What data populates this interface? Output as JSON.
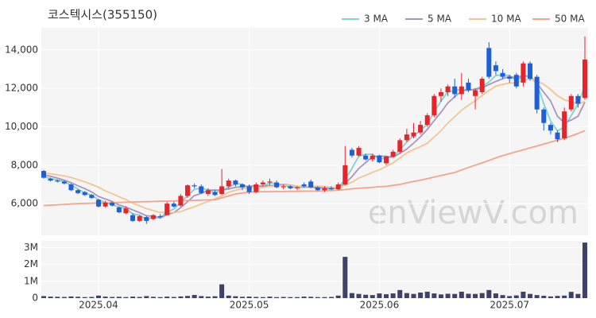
{
  "chart_data": {
    "type": "candlestick",
    "title": "코스텍시스(355150)",
    "watermark": "enViewV.com",
    "up_color": "#e8242b",
    "down_color": "#1c5fd8",
    "open": [
      7700,
      7300,
      7200,
      7150,
      7000,
      6700,
      6600,
      6450,
      6200,
      5850,
      6050,
      5800,
      5500,
      5400,
      5100,
      5300,
      5200,
      5350,
      5400,
      6000,
      5900,
      6400,
      6950,
      6900,
      6500,
      6600,
      6500,
      6900,
      7200,
      7000,
      6900,
      6600,
      7000,
      7100,
      7100,
      6850,
      6900,
      6800,
      7000,
      7150,
      6850,
      6700,
      6800,
      6750,
      7000,
      8800,
      8500,
      8500,
      8300,
      8500,
      8100,
      8450,
      8700,
      9300,
      9500,
      9700,
      10100,
      10600,
      11600,
      11800,
      12100,
      11700,
      12300,
      11600,
      11800,
      14100,
      13200,
      12800,
      12600,
      12700,
      12300,
      13300,
      12600,
      10900,
      10100,
      9700,
      9400,
      10900,
      11600,
      11500
    ],
    "high": [
      7750,
      7350,
      7250,
      7200,
      7050,
      6750,
      6650,
      6500,
      6250,
      6150,
      6100,
      5850,
      5850,
      5500,
      5400,
      5350,
      5450,
      5450,
      6100,
      6100,
      6500,
      7000,
      7050,
      7000,
      6800,
      6700,
      7800,
      7300,
      7250,
      7050,
      7000,
      7100,
      7200,
      7300,
      7200,
      7000,
      6950,
      6900,
      7100,
      7250,
      6900,
      6900,
      6900,
      7100,
      9000,
      8900,
      9000,
      8600,
      8600,
      8550,
      8500,
      8800,
      9400,
      9900,
      10200,
      10300,
      10700,
      11700,
      12000,
      12200,
      12500,
      12800,
      12500,
      12000,
      12600,
      14400,
      13400,
      13000,
      12700,
      12800,
      13400,
      13400,
      12700,
      11000,
      10200,
      9800,
      11000,
      11700,
      11700,
      14700
    ],
    "low": [
      7300,
      7150,
      7100,
      7000,
      6650,
      6500,
      6400,
      6250,
      5800,
      5800,
      5850,
      5500,
      5450,
      5050,
      5050,
      4950,
      5150,
      5250,
      5400,
      5800,
      5850,
      6300,
      6800,
      6500,
      6400,
      6400,
      6450,
      6800,
      6900,
      6700,
      6500,
      6550,
      6900,
      6950,
      6800,
      6750,
      6750,
      6700,
      6850,
      6800,
      6650,
      6600,
      6700,
      6700,
      6950,
      8400,
      8450,
      8250,
      8200,
      8100,
      8000,
      8400,
      8600,
      9200,
      9400,
      9600,
      10000,
      10500,
      11300,
      11600,
      11500,
      11400,
      11800,
      10900,
      11700,
      12500,
      12700,
      12500,
      12300,
      12000,
      12100,
      12400,
      10700,
      9800,
      9600,
      9200,
      9300,
      10800,
      11000,
      11400
    ],
    "close": [
      7350,
      7200,
      7150,
      7050,
      6700,
      6550,
      6450,
      6300,
      5850,
      6050,
      5900,
      5550,
      5750,
      5100,
      5350,
      5100,
      5400,
      5300,
      6000,
      5850,
      6400,
      6950,
      6900,
      6550,
      6700,
      6450,
      6900,
      7200,
      7000,
      6850,
      6600,
      7000,
      7100,
      7150,
      6850,
      6900,
      6800,
      6850,
      6900,
      6850,
      6700,
      6800,
      6750,
      7000,
      8000,
      8500,
      8900,
      8300,
      8500,
      8150,
      8450,
      8700,
      9300,
      9600,
      9700,
      10100,
      10600,
      11600,
      11800,
      12100,
      11700,
      12100,
      11900,
      11900,
      12500,
      12600,
      12900,
      12600,
      12500,
      12100,
      13300,
      12500,
      10900,
      10200,
      9800,
      9350,
      10800,
      11600,
      11200,
      13500
    ],
    "series": [
      {
        "name": "3 MA",
        "color": "#7fd3d0",
        "values": [
          7400,
          7300,
          7233,
          7133,
          6967,
          6767,
          6567,
          6433,
          6200,
          6067,
          5933,
          5833,
          5733,
          5467,
          5400,
          5183,
          5283,
          5267,
          5567,
          5717,
          6083,
          6400,
          6750,
          6800,
          6717,
          6567,
          6683,
          6850,
          7033,
          7017,
          6817,
          6817,
          6900,
          7083,
          7033,
          6967,
          6850,
          6850,
          6850,
          6867,
          6817,
          6783,
          6750,
          6850,
          7250,
          7833,
          8467,
          8567,
          8567,
          8317,
          8367,
          8433,
          8817,
          9200,
          9533,
          9800,
          10133,
          10767,
          11333,
          11833,
          11867,
          11967,
          11900,
          11967,
          12100,
          12333,
          12667,
          12700,
          12667,
          12400,
          12633,
          12633,
          12233,
          11200,
          10300,
          9783,
          9983,
          10583,
          11200,
          12100
        ]
      },
      {
        "name": "5 MA",
        "color": "#a994bf",
        "values": [
          7500,
          7420,
          7330,
          7220,
          7090,
          6930,
          6780,
          6610,
          6370,
          6240,
          6110,
          5930,
          5820,
          5670,
          5530,
          5370,
          5340,
          5250,
          5430,
          5530,
          5790,
          6100,
          6420,
          6530,
          6700,
          6710,
          6700,
          6760,
          6850,
          6880,
          6910,
          6930,
          6910,
          6940,
          6940,
          7000,
          6960,
          6910,
          6860,
          6860,
          6820,
          6820,
          6800,
          6820,
          7050,
          7410,
          7830,
          8140,
          8440,
          8470,
          8460,
          8420,
          8620,
          8840,
          9150,
          9480,
          9860,
          10320,
          10760,
          11240,
          11560,
          11860,
          11920,
          11940,
          12020,
          12200,
          12360,
          12500,
          12620,
          12540,
          12680,
          12600,
          12260,
          11800,
          11340,
          10550,
          10210,
          10350,
          10550,
          11290
        ]
      },
      {
        "name": "10 MA",
        "color": "#f3c590",
        "values": [
          7600,
          7550,
          7500,
          7440,
          7360,
          7250,
          7130,
          7000,
          6850,
          6665,
          6520,
          6355,
          6215,
          6020,
          5885,
          5740,
          5635,
          5535,
          5550,
          5530,
          5580,
          5720,
          5835,
          5980,
          6115,
          6250,
          6400,
          6590,
          6690,
          6790,
          6810,
          6815,
          6835,
          6895,
          6910,
          6955,
          6945,
          6910,
          6900,
          6900,
          6910,
          6890,
          6855,
          6840,
          6955,
          7115,
          7325,
          7470,
          7630,
          7760,
          7935,
          8125,
          8380,
          8640,
          8810,
          8970,
          9140,
          9470,
          9800,
          10195,
          10520,
          10860,
          11120,
          11350,
          11630,
          11880,
          12110,
          12210,
          12280,
          12280,
          12440,
          12480,
          12380,
          12210,
          11940,
          11615,
          11405,
          11305,
          11175,
          11315
        ]
      },
      {
        "name": "50 MA",
        "color": "#f4a38c",
        "values": [
          5900,
          5920,
          5940,
          5960,
          5980,
          6000,
          6010,
          6020,
          6030,
          6040,
          6050,
          6060,
          6070,
          6080,
          6090,
          6100,
          6110,
          6120,
          6130,
          6140,
          6150,
          6160,
          6170,
          6180,
          6190,
          6200,
          6300,
          6400,
          6500,
          6550,
          6600,
          6610,
          6620,
          6620,
          6630,
          6630,
          6640,
          6640,
          6650,
          6650,
          6650,
          6670,
          6680,
          6700,
          6730,
          6770,
          6800,
          6820,
          6850,
          6880,
          6900,
          6950,
          7000,
          7080,
          7150,
          7220,
          7300,
          7380,
          7460,
          7540,
          7620,
          7750,
          7880,
          8000,
          8120,
          8250,
          8380,
          8500,
          8600,
          8700,
          8800,
          8900,
          9000,
          9100,
          9200,
          9300,
          9400,
          9520,
          9650,
          9800
        ]
      }
    ],
    "ylim": [
      4350,
      15150
    ],
    "yticks": [
      {
        "value": 6000,
        "label": "6,000"
      },
      {
        "value": 8000,
        "label": "8,000"
      },
      {
        "value": 10000,
        "label": "10,000"
      },
      {
        "value": 12000,
        "label": "12,000"
      },
      {
        "value": 14000,
        "label": "14,000"
      }
    ],
    "xticks": [
      {
        "value": 8,
        "label": "2025.04"
      },
      {
        "value": 30,
        "label": "2025.05"
      },
      {
        "value": 49,
        "label": "2025.06"
      },
      {
        "value": 68,
        "label": "2025.07"
      }
    ],
    "grid": true,
    "legend": "top-right",
    "volume": {
      "type": "bar",
      "color": "#3f4168",
      "values": [
        120000,
        90000,
        80000,
        70000,
        100000,
        80000,
        60000,
        70000,
        150000,
        90000,
        70000,
        80000,
        60000,
        90000,
        70000,
        120000,
        80000,
        60000,
        90000,
        70000,
        100000,
        130000,
        190000,
        120000,
        90000,
        110000,
        820000,
        150000,
        110000,
        80000,
        90000,
        70000,
        60000,
        90000,
        60000,
        70000,
        60000,
        60000,
        90000,
        80000,
        60000,
        60000,
        70000,
        150000,
        2450000,
        300000,
        250000,
        200000,
        180000,
        280000,
        230000,
        280000,
        480000,
        300000,
        250000,
        330000,
        380000,
        280000,
        220000,
        260000,
        250000,
        380000,
        260000,
        250000,
        300000,
        480000,
        280000,
        180000,
        120000,
        160000,
        380000,
        250000,
        180000,
        140000,
        100000,
        130000,
        150000,
        370000,
        250000,
        3300000
      ],
      "ylim": [
        0,
        3400000
      ],
      "yticks": [
        0,
        {
          "value": 1000000,
          "label": "1M"
        },
        {
          "value": 2000000,
          "label": "2M"
        },
        {
          "value": 3000000,
          "label": "3M"
        }
      ]
    }
  }
}
